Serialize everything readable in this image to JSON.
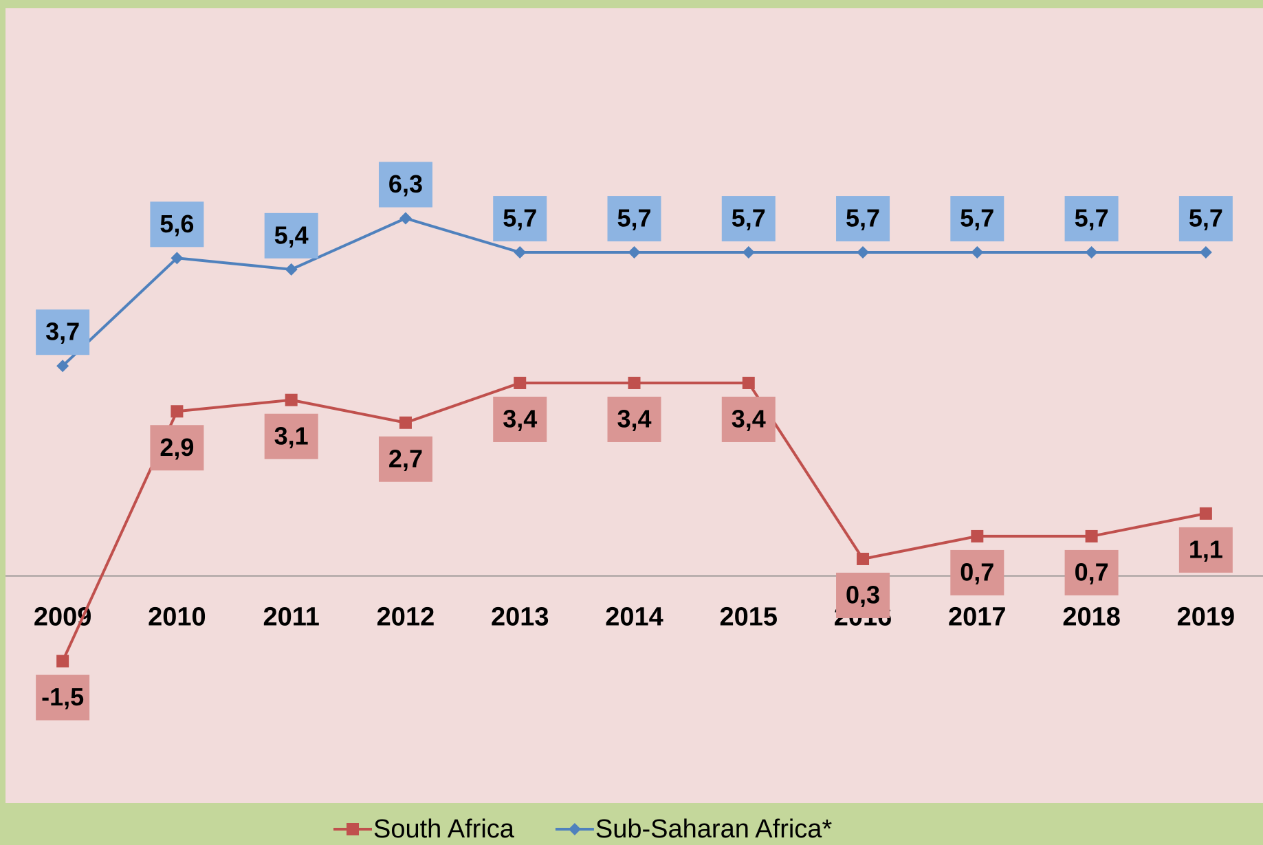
{
  "chart_data": {
    "type": "line",
    "categories": [
      "2009",
      "2010",
      "2011",
      "2012",
      "2013",
      "2014",
      "2015",
      "2016",
      "2017",
      "2018",
      "2019"
    ],
    "series": [
      {
        "name": "South Africa",
        "color": "#c0504d",
        "marker": "square",
        "label_color": "#da9694",
        "values": [
          -1.5,
          2.9,
          3.1,
          2.7,
          3.4,
          3.4,
          3.4,
          0.3,
          0.7,
          0.7,
          1.1
        ],
        "value_labels": [
          "-1,5",
          "2,9",
          "3,1",
          "2,7",
          "3,4",
          "3,4",
          "3,4",
          "0,3",
          "0,7",
          "0,7",
          "1,1"
        ]
      },
      {
        "name": "Sub-Saharan Africa*",
        "color": "#4f81bd",
        "marker": "diamond",
        "label_color": "#8db4e2",
        "values": [
          3.7,
          5.6,
          5.4,
          6.3,
          5.7,
          5.7,
          5.7,
          5.7,
          5.7,
          5.7,
          5.7
        ],
        "value_labels": [
          "3,7",
          "5,6",
          "5,4",
          "6,3",
          "5,7",
          "5,7",
          "5,7",
          "5,7",
          "5,7",
          "5,7",
          "5,7"
        ]
      }
    ],
    "ylim": [
      -4,
      10
    ],
    "legend": "bottom"
  }
}
